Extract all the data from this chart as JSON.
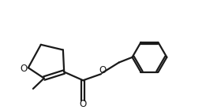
{
  "bg_color": "#ffffff",
  "line_color": "#1a1a1a",
  "line_width": 1.6,
  "figsize": [
    2.8,
    1.4
  ],
  "dpi": 100,
  "xlim": [
    0,
    10
  ],
  "ylim": [
    0,
    5
  ]
}
